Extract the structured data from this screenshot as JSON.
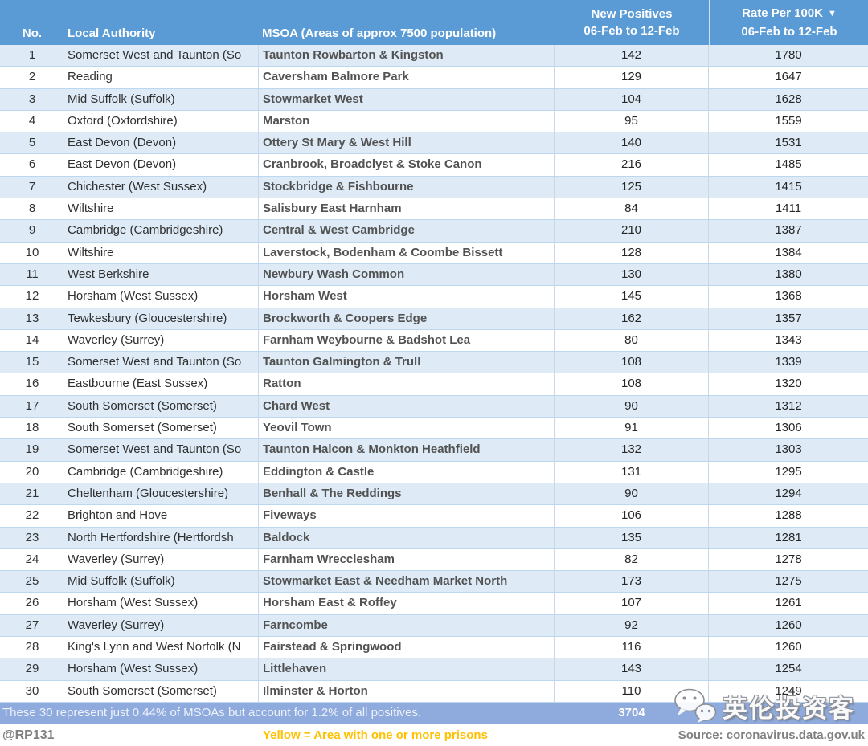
{
  "chart_data": {
    "type": "table",
    "columns": {
      "no": "No.",
      "local_authority": "Local Authority",
      "msoa": "MSOA (Areas of approx 7500 population)",
      "new_positives_line1": "New Positives",
      "rate_line1": "Rate Per 100K",
      "period": "06-Feb to 12-Feb",
      "sort_icon": "▼",
      "sorted_by": "Rate Per 100K descending"
    },
    "rows": [
      {
        "no": "1",
        "local_authority": "Somerset West and Taunton (So",
        "msoa": "Taunton Rowbarton & Kingston",
        "new_positives": "142",
        "rate": "1780"
      },
      {
        "no": "2",
        "local_authority": "Reading",
        "msoa": "Caversham Balmore Park",
        "new_positives": "129",
        "rate": "1647"
      },
      {
        "no": "3",
        "local_authority": "Mid Suffolk (Suffolk)",
        "msoa": "Stowmarket West",
        "new_positives": "104",
        "rate": "1628"
      },
      {
        "no": "4",
        "local_authority": "Oxford (Oxfordshire)",
        "msoa": "Marston",
        "new_positives": "95",
        "rate": "1559"
      },
      {
        "no": "5",
        "local_authority": "East Devon (Devon)",
        "msoa": "Ottery St Mary & West Hill",
        "new_positives": "140",
        "rate": "1531"
      },
      {
        "no": "6",
        "local_authority": "East Devon (Devon)",
        "msoa": "Cranbrook, Broadclyst & Stoke Canon",
        "new_positives": "216",
        "rate": "1485"
      },
      {
        "no": "7",
        "local_authority": "Chichester (West Sussex)",
        "msoa": "Stockbridge & Fishbourne",
        "new_positives": "125",
        "rate": "1415"
      },
      {
        "no": "8",
        "local_authority": "Wiltshire",
        "msoa": "Salisbury East Harnham",
        "new_positives": "84",
        "rate": "1411"
      },
      {
        "no": "9",
        "local_authority": "Cambridge (Cambridgeshire)",
        "msoa": "Central & West Cambridge",
        "new_positives": "210",
        "rate": "1387"
      },
      {
        "no": "10",
        "local_authority": "Wiltshire",
        "msoa": "Laverstock, Bodenham & Coombe Bissett",
        "new_positives": "128",
        "rate": "1384"
      },
      {
        "no": "11",
        "local_authority": "West Berkshire",
        "msoa": "Newbury Wash Common",
        "new_positives": "130",
        "rate": "1380"
      },
      {
        "no": "12",
        "local_authority": "Horsham (West Sussex)",
        "msoa": "Horsham West",
        "new_positives": "145",
        "rate": "1368"
      },
      {
        "no": "13",
        "local_authority": "Tewkesbury (Gloucestershire)",
        "msoa": "Brockworth & Coopers Edge",
        "new_positives": "162",
        "rate": "1357"
      },
      {
        "no": "14",
        "local_authority": "Waverley (Surrey)",
        "msoa": "Farnham Weybourne & Badshot Lea",
        "new_positives": "80",
        "rate": "1343"
      },
      {
        "no": "15",
        "local_authority": "Somerset West and Taunton (So",
        "msoa": "Taunton Galmington & Trull",
        "new_positives": "108",
        "rate": "1339"
      },
      {
        "no": "16",
        "local_authority": "Eastbourne (East Sussex)",
        "msoa": "Ratton",
        "new_positives": "108",
        "rate": "1320"
      },
      {
        "no": "17",
        "local_authority": "South Somerset (Somerset)",
        "msoa": "Chard West",
        "new_positives": "90",
        "rate": "1312"
      },
      {
        "no": "18",
        "local_authority": "South Somerset (Somerset)",
        "msoa": "Yeovil Town",
        "new_positives": "91",
        "rate": "1306"
      },
      {
        "no": "19",
        "local_authority": "Somerset West and Taunton (So",
        "msoa": "Taunton Halcon & Monkton Heathfield",
        "new_positives": "132",
        "rate": "1303"
      },
      {
        "no": "20",
        "local_authority": "Cambridge (Cambridgeshire)",
        "msoa": "Eddington & Castle",
        "new_positives": "131",
        "rate": "1295"
      },
      {
        "no": "21",
        "local_authority": "Cheltenham (Gloucestershire)",
        "msoa": "Benhall & The Reddings",
        "new_positives": "90",
        "rate": "1294"
      },
      {
        "no": "22",
        "local_authority": "Brighton and Hove",
        "msoa": "Fiveways",
        "new_positives": "106",
        "rate": "1288"
      },
      {
        "no": "23",
        "local_authority": "North Hertfordshire (Hertfordsh",
        "msoa": "Baldock",
        "new_positives": "135",
        "rate": "1281"
      },
      {
        "no": "24",
        "local_authority": "Waverley (Surrey)",
        "msoa": "Farnham Wrecclesham",
        "new_positives": "82",
        "rate": "1278"
      },
      {
        "no": "25",
        "local_authority": "Mid Suffolk (Suffolk)",
        "msoa": "Stowmarket East & Needham Market North",
        "new_positives": "173",
        "rate": "1275"
      },
      {
        "no": "26",
        "local_authority": "Horsham (West Sussex)",
        "msoa": "Horsham East & Roffey",
        "new_positives": "107",
        "rate": "1261"
      },
      {
        "no": "27",
        "local_authority": "Waverley (Surrey)",
        "msoa": "Farncombe",
        "new_positives": "92",
        "rate": "1260"
      },
      {
        "no": "28",
        "local_authority": "King's Lynn and West Norfolk (N",
        "msoa": "Fairstead & Springwood",
        "new_positives": "116",
        "rate": "1260"
      },
      {
        "no": "29",
        "local_authority": "Horsham (West Sussex)",
        "msoa": "Littlehaven",
        "new_positives": "143",
        "rate": "1254"
      },
      {
        "no": "30",
        "local_authority": "South Somerset (Somerset)",
        "msoa": "Ilminster & Horton",
        "new_positives": "110",
        "rate": "1249"
      }
    ]
  },
  "summary": {
    "note": "These 30 represent just 0.44% of MSOAs but account for 1.2% of all positives.",
    "total_new_positives": "3704"
  },
  "footer": {
    "handle": "@RP131",
    "prison_legend": "Yellow = Area with one or more prisons",
    "source": "Source: coronavirus.data.gov.uk"
  },
  "watermark": {
    "text": "英伦投资客"
  },
  "colors": {
    "header_bg": "#5B9BD5",
    "row_alt_bg": "#DEEBF7",
    "row_bg": "#FFFFFF",
    "summary_bg": "#8FAADC",
    "prison_legend_color": "#FFC000",
    "muted_text": "#808080",
    "grid_line": "#BDD7EE"
  }
}
